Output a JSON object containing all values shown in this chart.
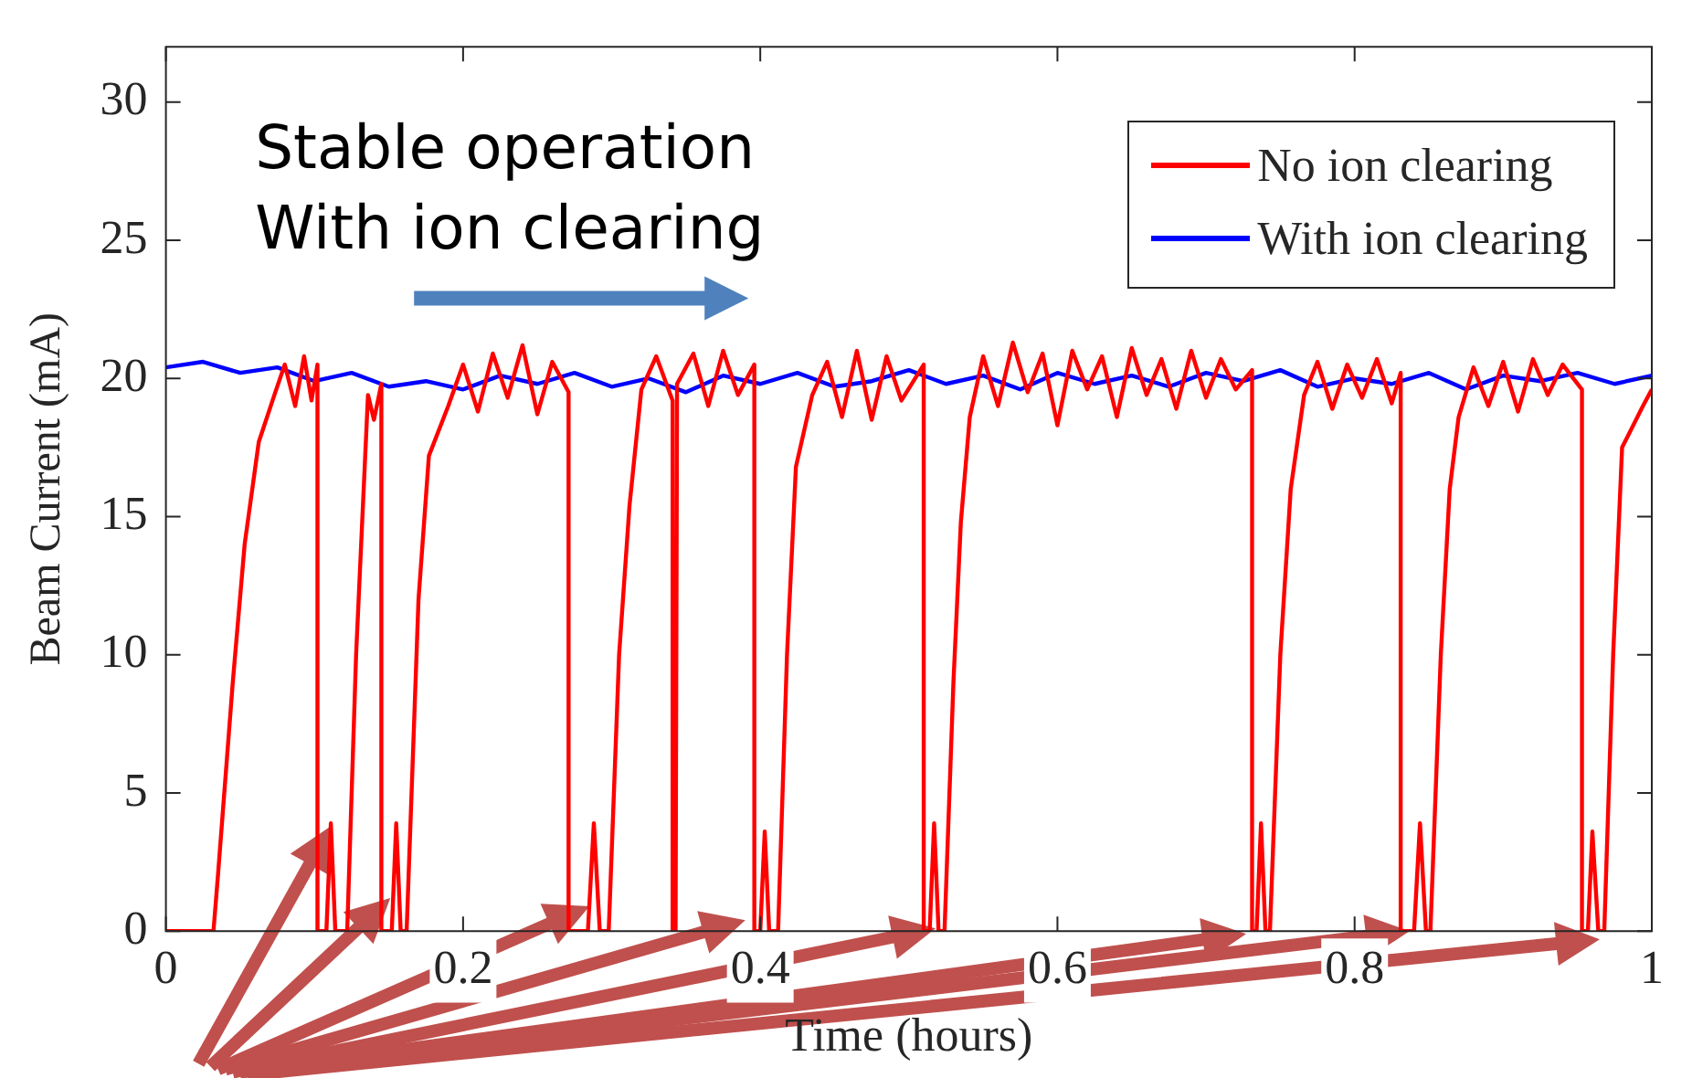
{
  "chart_data": {
    "type": "line",
    "xlabel": "Time (hours)",
    "ylabel": "Beam Current (mA)",
    "xlim": [
      0,
      1
    ],
    "xticks": [
      0,
      0.2,
      0.4,
      0.6,
      0.8,
      1
    ],
    "ylim": [
      0,
      32
    ],
    "yticks": [
      0,
      5,
      10,
      15,
      20,
      25,
      30
    ],
    "legend": "top right",
    "annotations": [
      "Stable operation\nWith ion clearing"
    ],
    "series": [
      {
        "name": "No ion clearing",
        "color": "#ff0000",
        "x": [
          0,
          0.032,
          0.035,
          0.045,
          0.053,
          0.0625,
          0.073,
          0.08,
          0.087,
          0.093,
          0.098,
          0.102,
          0.102,
          0.108,
          0.111,
          0.114,
          0.122,
          0.128,
          0.136,
          0.14,
          0.145,
          0.145,
          0.152,
          0.155,
          0.158,
          0.162,
          0.17,
          0.177,
          0.19,
          0.2,
          0.21,
          0.22,
          0.23,
          0.24,
          0.25,
          0.26,
          0.271,
          0.271,
          0.284,
          0.288,
          0.292,
          0.298,
          0.305,
          0.312,
          0.32,
          0.33,
          0.341,
          0.341,
          0.343,
          0.344,
          0.355,
          0.365,
          0.375,
          0.385,
          0.396,
          0.396,
          0.4,
          0.403,
          0.406,
          0.412,
          0.418,
          0.424,
          0.435,
          0.445,
          0.455,
          0.465,
          0.475,
          0.485,
          0.495,
          0.51,
          0.51,
          0.514,
          0.517,
          0.52,
          0.524,
          0.53,
          0.535,
          0.541,
          0.55,
          0.56,
          0.57,
          0.58,
          0.59,
          0.6,
          0.61,
          0.62,
          0.63,
          0.64,
          0.65,
          0.66,
          0.67,
          0.68,
          0.69,
          0.7,
          0.71,
          0.72,
          0.731,
          0.731,
          0.734,
          0.737,
          0.74,
          0.743,
          0.75,
          0.757,
          0.766,
          0.775,
          0.785,
          0.795,
          0.805,
          0.815,
          0.825,
          0.831,
          0.831,
          0.84,
          0.844,
          0.848,
          0.851,
          0.858,
          0.864,
          0.87,
          0.88,
          0.89,
          0.9,
          0.91,
          0.92,
          0.93,
          0.94,
          0.953,
          0.953,
          0.957,
          0.96,
          0.964,
          0.968,
          0.974,
          0.98,
          0.994,
          1
        ],
        "values": [
          0,
          0,
          2,
          9,
          14,
          17.7,
          19.4,
          20.5,
          19,
          20.8,
          19.2,
          20.5,
          0,
          0,
          3.9,
          0,
          0,
          10,
          19.4,
          18.5,
          19.8,
          0,
          0,
          3.9,
          0,
          0,
          12,
          17.2,
          19,
          20.5,
          18.8,
          20.9,
          19.3,
          21.2,
          18.7,
          20.6,
          19.5,
          0,
          0,
          3.9,
          0,
          0,
          10,
          15.4,
          19.6,
          20.8,
          19.2,
          0,
          0,
          19.8,
          20.9,
          19,
          21,
          19.4,
          20.5,
          0,
          0,
          3.6,
          0,
          0,
          10,
          16.8,
          19.4,
          20.6,
          18.6,
          21,
          18.5,
          20.8,
          19.2,
          20.5,
          0,
          0,
          3.9,
          0,
          0,
          9,
          14.8,
          18.6,
          20.8,
          19,
          21.3,
          19.5,
          20.9,
          18.3,
          21,
          19.6,
          20.8,
          18.6,
          21.1,
          19.4,
          20.7,
          18.9,
          21,
          19.3,
          20.7,
          19.6,
          20.3,
          0,
          0,
          3.9,
          0,
          0,
          10,
          16,
          19.4,
          20.6,
          18.9,
          20.5,
          19.3,
          20.7,
          19.1,
          20.2,
          0,
          0,
          3.9,
          0,
          0,
          10,
          16,
          18.6,
          20.4,
          19,
          20.6,
          18.8,
          20.7,
          19.4,
          20.5,
          19.6,
          0,
          0,
          3.6,
          0,
          0,
          10,
          17.5,
          19,
          19.6
        ]
      },
      {
        "name": "With ion clearing",
        "color": "#0000ff",
        "x": [
          0,
          0.025,
          0.05,
          0.075,
          0.1,
          0.125,
          0.15,
          0.175,
          0.2,
          0.225,
          0.25,
          0.275,
          0.3,
          0.325,
          0.35,
          0.375,
          0.4,
          0.425,
          0.45,
          0.475,
          0.5,
          0.525,
          0.55,
          0.575,
          0.6,
          0.625,
          0.65,
          0.675,
          0.7,
          0.725,
          0.75,
          0.775,
          0.8,
          0.825,
          0.85,
          0.875,
          0.9,
          0.925,
          0.95,
          0.975,
          1
        ],
        "values": [
          20.4,
          20.6,
          20.2,
          20.4,
          19.9,
          20.2,
          19.7,
          19.9,
          19.6,
          20.1,
          19.8,
          20.2,
          19.7,
          20,
          19.5,
          20.1,
          19.8,
          20.2,
          19.7,
          19.9,
          20.3,
          19.8,
          20.1,
          19.6,
          20.2,
          19.8,
          20.1,
          19.7,
          20.2,
          19.9,
          20.3,
          19.7,
          20,
          19.8,
          20.2,
          19.6,
          20.1,
          19.9,
          20.2,
          19.8,
          20.1
        ]
      }
    ]
  }
}
